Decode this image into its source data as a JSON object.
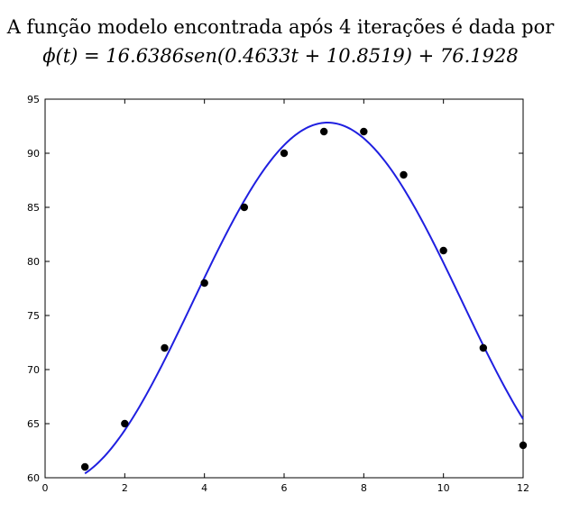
{
  "caption": {
    "line1": "A função modelo encontrada após 4 iterações é dada por",
    "line2": "ϕ(t) = 16.6386sen(0.4633t + 10.8519) + 76.1928"
  },
  "colors": {
    "curve": "#1f1fe0",
    "points": "#000000",
    "axes": "#000000"
  },
  "chart_data": {
    "type": "scatter",
    "title": "",
    "xlabel": "",
    "ylabel": "",
    "xlim": [
      0,
      12
    ],
    "ylim": [
      60,
      95
    ],
    "grid": false,
    "x_ticks": [
      0,
      2,
      4,
      6,
      8,
      10,
      12
    ],
    "y_ticks": [
      60,
      65,
      70,
      75,
      80,
      85,
      90,
      95
    ],
    "points": {
      "x": [
        1,
        2,
        3,
        4,
        5,
        6,
        7,
        8,
        9,
        10,
        11,
        12
      ],
      "y": [
        61,
        65,
        72,
        78,
        85,
        90,
        92,
        92,
        88,
        81,
        72,
        63
      ]
    },
    "model": {
      "amplitude": 16.6386,
      "frequency": 0.4633,
      "phase": 10.8519,
      "offset": 76.1928,
      "t_range": [
        1,
        12
      ]
    }
  }
}
